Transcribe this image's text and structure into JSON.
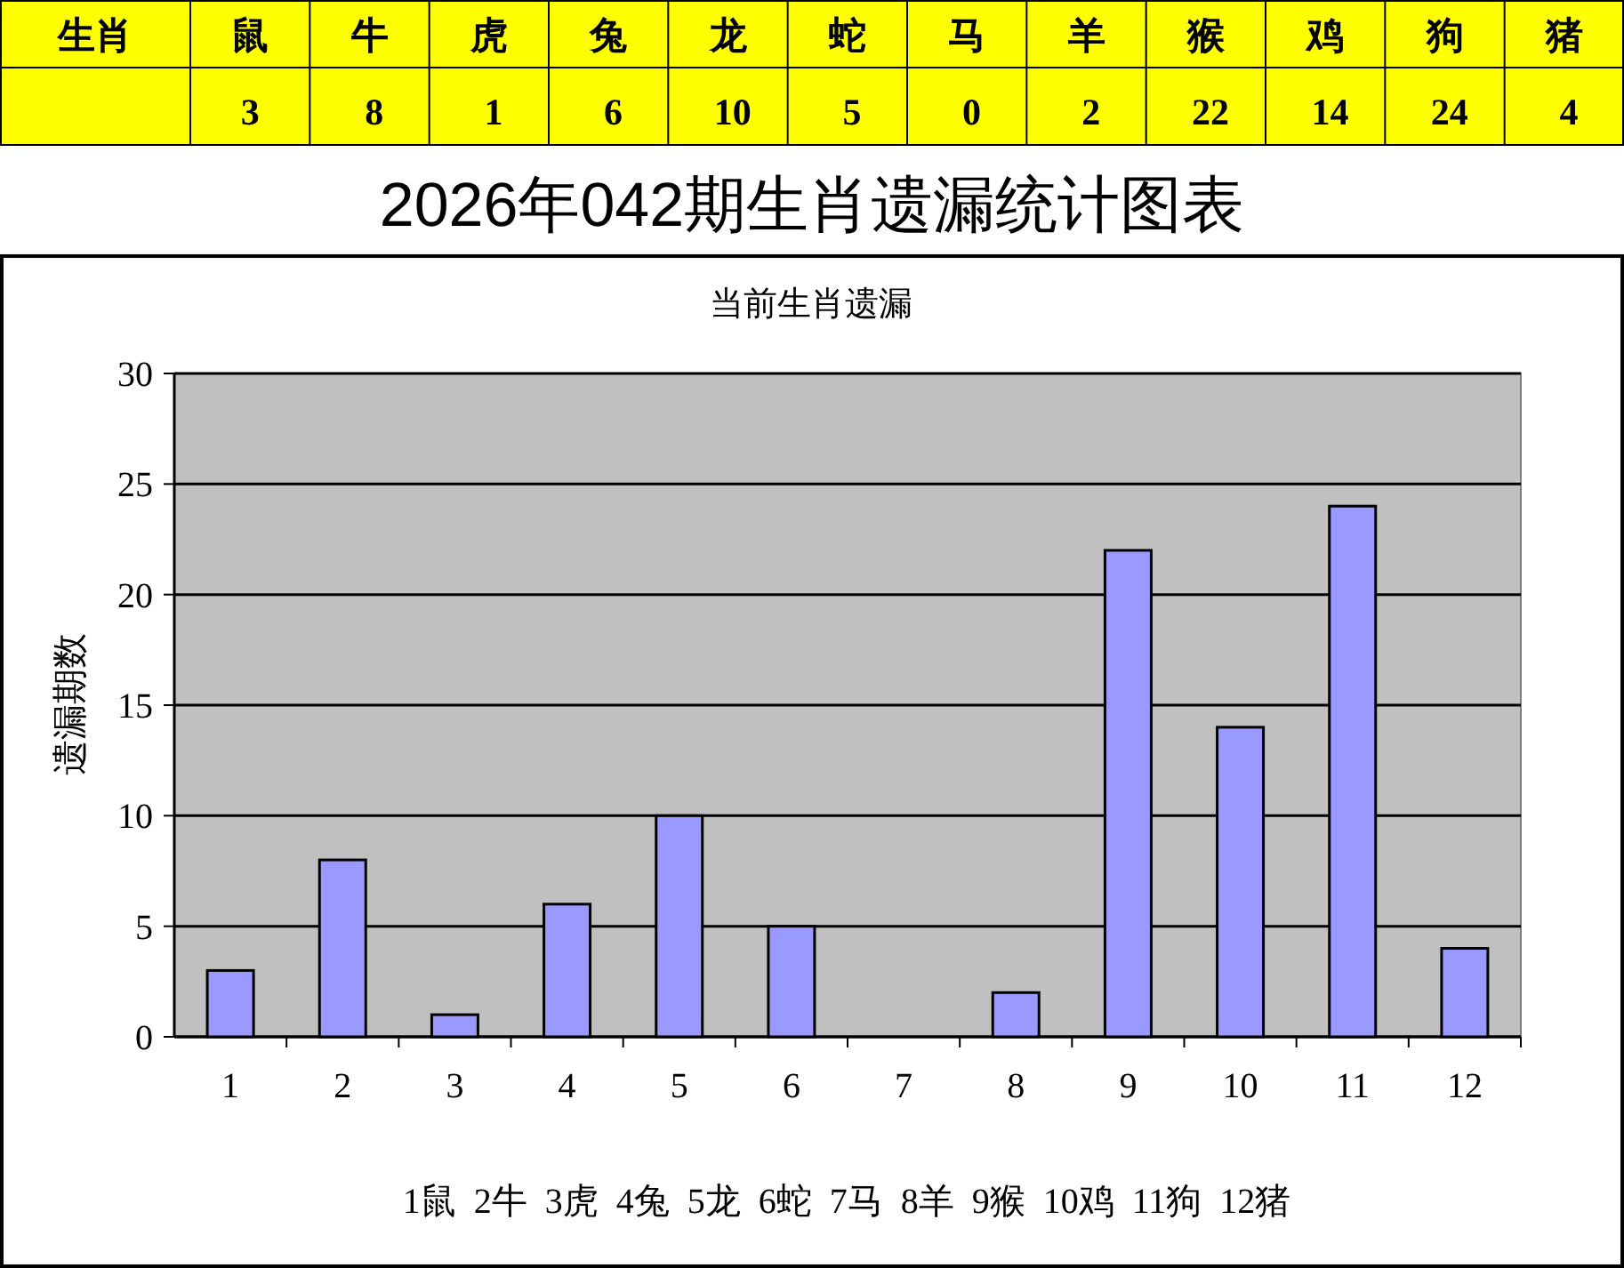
{
  "chart_data": {
    "type": "bar",
    "title": "2026年042期生肖遗漏统计图表",
    "subtitle": "当前生肖遗漏",
    "ylabel": "遗漏期数",
    "x": [
      1,
      2,
      3,
      4,
      5,
      6,
      7,
      8,
      9,
      10,
      11,
      12
    ],
    "xlim": [
      0.5,
      12.5
    ],
    "xticks": [
      1,
      2,
      3,
      4,
      5,
      6,
      7,
      8,
      9,
      10,
      11,
      12
    ],
    "values": [
      3,
      8,
      1,
      6,
      10,
      5,
      0,
      2,
      22,
      14,
      24,
      4
    ],
    "color": "#9999ff",
    "ylim": [
      0,
      30
    ],
    "yticks": [
      0,
      5,
      10,
      15,
      20,
      25,
      30
    ],
    "grid": "y",
    "annotations": [
      "生肖",
      "鼠",
      "牛",
      "虎",
      "兔",
      "龙",
      "蛇",
      "马",
      "羊",
      "猴",
      "鸡",
      "狗",
      "猪",
      "3 8 1 6 10 5 0 2 22 14 24 4",
      "1鼠  2牛  3虎  4兔  5龙  6蛇  7马  8羊  9猴  10鸡  11狗  12猪"
    ]
  }
}
